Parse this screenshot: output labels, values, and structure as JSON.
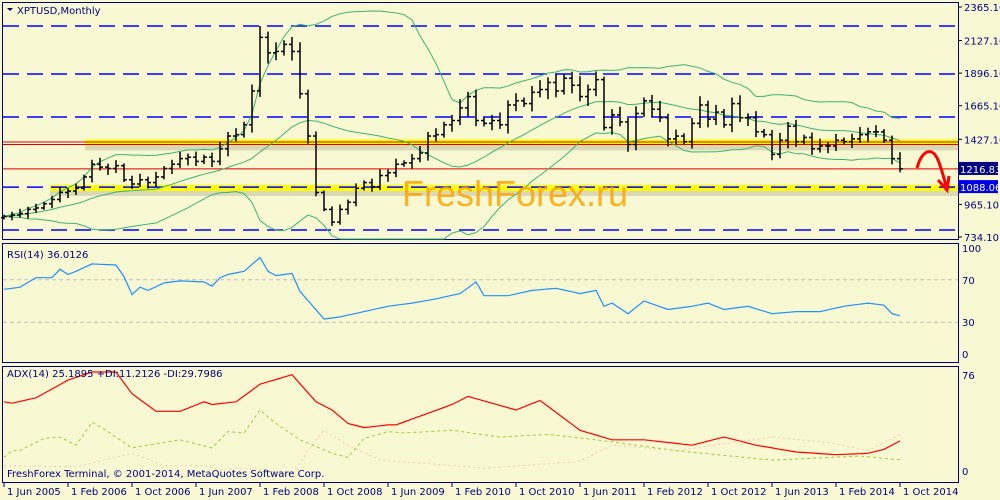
{
  "window": {
    "symbol_title": "XPTUSD,Monthly",
    "copyright": "FreshForex Terminal, © 2001-2014, MetaQuotes Software Corp.",
    "watermark": "FreshForex.ru"
  },
  "colors": {
    "background": "#f8f8d2",
    "frame": "#000080",
    "bars": "#000000",
    "bands": "#3cb371",
    "levels": "#0000ff",
    "zones": "#ffff00",
    "rsi": "#1e90ff",
    "adx": "#ff0000",
    "plus_di": "#9acd32",
    "minus_di": "#f5c8b4",
    "watermark": "#ffa500",
    "arrow": "#ff0000"
  },
  "chart_data": [
    {
      "type": "ohlc",
      "title": "XPTUSD,Monthly",
      "start_month": "2005-06",
      "closes": [
        880,
        890,
        900,
        930,
        940,
        970,
        1000,
        1050,
        1060,
        1080,
        1160,
        1250,
        1230,
        1220,
        1240,
        1140,
        1110,
        1140,
        1120,
        1160,
        1220,
        1250,
        1290,
        1300,
        1270,
        1300,
        1270,
        1360,
        1450,
        1460,
        1530,
        1770,
        2150,
        2040,
        2050,
        2100,
        2050,
        1750,
        1450,
        1050,
        930,
        840,
        930,
        980,
        1080,
        1120,
        1090,
        1170,
        1190,
        1250,
        1260,
        1290,
        1330,
        1450,
        1460,
        1530,
        1560,
        1650,
        1730,
        1560,
        1540,
        1560,
        1530,
        1670,
        1700,
        1680,
        1760,
        1780,
        1830,
        1770,
        1860,
        1810,
        1730,
        1780,
        1850,
        1510,
        1600,
        1550,
        1390,
        1610,
        1700,
        1640,
        1580,
        1430,
        1450,
        1410,
        1540,
        1670,
        1570,
        1620,
        1530,
        1680,
        1580,
        1580,
        1480,
        1460,
        1320,
        1420,
        1520,
        1410,
        1440,
        1360,
        1380,
        1380,
        1420,
        1410,
        1430,
        1460,
        1480,
        1480,
        1420,
        1290,
        1216.83
      ],
      "y_ticks": [
        "2365.10",
        "2127.10",
        "1896.10",
        "1665.10",
        "1427.10",
        "965.10",
        "734.10"
      ],
      "ylim": [
        734.1,
        2365.1
      ],
      "price_tags": [
        {
          "value": "1216.83",
          "color": "#000080"
        },
        {
          "value": "1088.06",
          "color": "#0000e8"
        }
      ],
      "dashed_levels": [
        2230,
        1890,
        1585,
        1088.06,
        784
      ],
      "red_levels": [
        1408,
        1390,
        1216.83
      ],
      "support_zones": [
        1405,
        1082
      ],
      "bollinger": {
        "period": 20,
        "deviations": 2
      },
      "x_ticks": [
        "1 Jun 2005",
        "1 Feb 2006",
        "1 Oct 2006",
        "1 Jun 2007",
        "1 Feb 2008",
        "1 Oct 2008",
        "1 Jun 2009",
        "1 Feb 2010",
        "1 Oct 2010",
        "1 Jun 2011",
        "1 Feb 2012",
        "1 Oct 2012",
        "1 Jun 2013",
        "1 Feb 2014",
        "1 Oct 2014"
      ]
    },
    {
      "type": "line",
      "label": "RSI(14) 36.0126",
      "ylim": [
        0,
        100
      ],
      "y_ticks": [
        "100",
        "70",
        "30",
        "0"
      ],
      "levels": [
        70,
        30
      ],
      "series": [
        {
          "values": [
            [
              "2005-06",
              61
            ],
            [
              "2005-08",
              63
            ],
            [
              "2005-10",
              72
            ],
            [
              "2005-12",
              72
            ],
            [
              "2006-01",
              80
            ],
            [
              "2006-02",
              75
            ],
            [
              "2006-03",
              78
            ],
            [
              "2006-05",
              85
            ],
            [
              "2006-08",
              84
            ],
            [
              "2006-09",
              73
            ],
            [
              "2006-10",
              56
            ],
            [
              "2006-11",
              63
            ],
            [
              "2006-12",
              60
            ],
            [
              "2007-02",
              67
            ],
            [
              "2007-04",
              69
            ],
            [
              "2007-07",
              68
            ],
            [
              "2007-08",
              64
            ],
            [
              "2007-09",
              72
            ],
            [
              "2007-10",
              75
            ],
            [
              "2007-12",
              78
            ],
            [
              "2008-02",
              91
            ],
            [
              "2008-03",
              78
            ],
            [
              "2008-04",
              74
            ],
            [
              "2008-06",
              76
            ],
            [
              "2008-07",
              59
            ],
            [
              "2008-10",
              33
            ],
            [
              "2008-12",
              35
            ],
            [
              "2009-03",
              40
            ],
            [
              "2009-06",
              45
            ],
            [
              "2009-09",
              48
            ],
            [
              "2009-12",
              52
            ],
            [
              "2010-03",
              57
            ],
            [
              "2010-05",
              68
            ],
            [
              "2010-06",
              55
            ],
            [
              "2010-09",
              55
            ],
            [
              "2010-12",
              60
            ],
            [
              "2011-03",
              62
            ],
            [
              "2011-06",
              57
            ],
            [
              "2011-08",
              60
            ],
            [
              "2011-09",
              45
            ],
            [
              "2011-10",
              48
            ],
            [
              "2011-12",
              38
            ],
            [
              "2012-02",
              50
            ],
            [
              "2012-05",
              42
            ],
            [
              "2012-08",
              45
            ],
            [
              "2012-10",
              48
            ],
            [
              "2012-12",
              42
            ],
            [
              "2013-03",
              45
            ],
            [
              "2013-06",
              38
            ],
            [
              "2013-09",
              40
            ],
            [
              "2013-12",
              40
            ],
            [
              "2014-03",
              45
            ],
            [
              "2014-06",
              48
            ],
            [
              "2014-08",
              46
            ],
            [
              "2014-09",
              38
            ],
            [
              "2014-10",
              36
            ]
          ]
        }
      ]
    },
    {
      "type": "line",
      "label": "ADX(14) 25.1895 +DI:11.2126 -DI:29.7986",
      "ylim": [
        0,
        76
      ],
      "y_ticks": [
        "76",
        "0"
      ],
      "series": [
        {
          "key": "adx",
          "values": [
            [
              "2005-06",
              54
            ],
            [
              "2005-07",
              53
            ],
            [
              "2005-10",
              57
            ],
            [
              "2006-02",
              70
            ],
            [
              "2006-05",
              76
            ],
            [
              "2006-06",
              76
            ],
            [
              "2006-08",
              76
            ],
            [
              "2006-10",
              60
            ],
            [
              "2007-01",
              47
            ],
            [
              "2007-04",
              47
            ],
            [
              "2007-07",
              54
            ],
            [
              "2007-08",
              52
            ],
            [
              "2007-11",
              54
            ],
            [
              "2008-02",
              67
            ],
            [
              "2008-06",
              74
            ],
            [
              "2008-09",
              54
            ],
            [
              "2008-11",
              48
            ],
            [
              "2009-01",
              38
            ],
            [
              "2009-03",
              35
            ],
            [
              "2009-06",
              37
            ],
            [
              "2009-07",
              37
            ],
            [
              "2010-02",
              52
            ],
            [
              "2010-04",
              58
            ],
            [
              "2010-10",
              48
            ],
            [
              "2011-01",
              55
            ],
            [
              "2011-06",
              33
            ],
            [
              "2011-10",
              26
            ],
            [
              "2012-02",
              26
            ],
            [
              "2012-08",
              22
            ],
            [
              "2012-12",
              28
            ],
            [
              "2013-04",
              22
            ],
            [
              "2013-09",
              17
            ],
            [
              "2014-02",
              15
            ],
            [
              "2014-06",
              16
            ],
            [
              "2014-08",
              19
            ],
            [
              "2014-10",
              25.19
            ]
          ]
        },
        {
          "key": "plus_di",
          "values": [
            [
              "2005-06",
              13
            ],
            [
              "2005-07",
              18
            ],
            [
              "2005-08",
              18
            ],
            [
              "2005-11",
              27
            ],
            [
              "2006-01",
              28
            ],
            [
              "2006-03",
              22
            ],
            [
              "2006-05",
              39
            ],
            [
              "2006-07",
              32
            ],
            [
              "2006-10",
              20
            ],
            [
              "2007-02",
              24
            ],
            [
              "2007-04",
              26
            ],
            [
              "2007-08",
              20
            ],
            [
              "2007-10",
              32
            ],
            [
              "2007-12",
              31
            ],
            [
              "2008-02",
              48
            ],
            [
              "2008-04",
              38
            ],
            [
              "2008-07",
              26
            ],
            [
              "2008-11",
              16
            ],
            [
              "2009-01",
              13
            ],
            [
              "2009-03",
              27
            ],
            [
              "2009-06",
              32
            ],
            [
              "2009-08",
              31
            ],
            [
              "2010-02",
              33
            ],
            [
              "2010-08",
              28
            ],
            [
              "2011-02",
              30
            ],
            [
              "2011-08",
              26
            ],
            [
              "2012-06",
              18
            ],
            [
              "2013-06",
              11
            ],
            [
              "2014-05",
              14
            ],
            [
              "2014-10",
              11.21
            ]
          ]
        },
        {
          "key": "minus_di",
          "values": [
            [
              "2005-06",
              7
            ],
            [
              "2006-03",
              6
            ],
            [
              "2006-10",
              16
            ],
            [
              "2007-02",
              7
            ],
            [
              "2007-07",
              7
            ],
            [
              "2007-09",
              4
            ],
            [
              "2008-01",
              5
            ],
            [
              "2008-06",
              0
            ],
            [
              "2008-08",
              18
            ],
            [
              "2008-10",
              33
            ],
            [
              "2009-01",
              22
            ],
            [
              "2009-05",
              11
            ],
            [
              "2009-07",
              10
            ],
            [
              "2009-12",
              8
            ],
            [
              "2010-06",
              5
            ],
            [
              "2011-06",
              10
            ],
            [
              "2011-10",
              22
            ],
            [
              "2012-06",
              18
            ],
            [
              "2013-06",
              28
            ],
            [
              "2014-01",
              24
            ],
            [
              "2014-06",
              18
            ],
            [
              "2014-10",
              29.8
            ]
          ]
        }
      ]
    }
  ]
}
